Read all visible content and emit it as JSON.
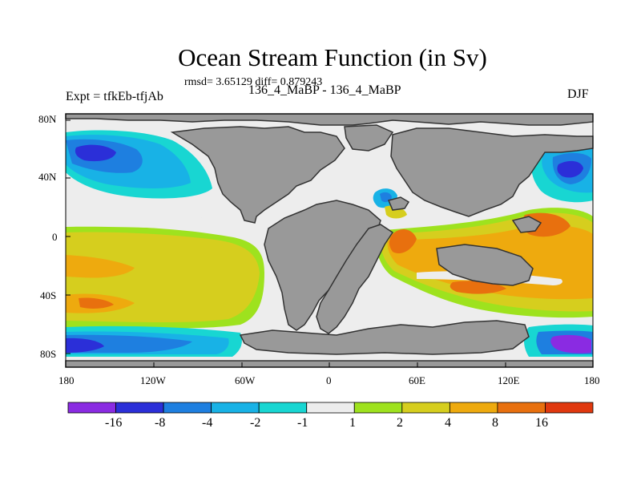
{
  "figure": {
    "title": "Ocean Stream Function (in Sv)",
    "stats": "rmsd= 3.65129 diff= 0.879243",
    "left_label": "Expt = tfkEb-tfjAb",
    "center_label": "136_4_MaBP - 136_4_MaBP",
    "right_label": "DJF"
  },
  "axes": {
    "y_ticks": [
      "80N",
      "40N",
      "0",
      "40S",
      "80S"
    ],
    "x_ticks": [
      "180",
      "120W",
      "60W",
      "0",
      "60E",
      "120E",
      "180"
    ]
  },
  "colorbar": {
    "labels": [
      "-16",
      "-8",
      "-4",
      "-2",
      "-1",
      "1",
      "2",
      "4",
      "8",
      "16"
    ],
    "colors": [
      "#8a2be2",
      "#2b2fd8",
      "#1e7fe0",
      "#18b2e6",
      "#18d6d2",
      "#ededed",
      "#9ee21e",
      "#d6ce1e",
      "#eeaa0e",
      "#e8700e",
      "#e0380e"
    ]
  },
  "map": {
    "land_color": "#999999",
    "ocean_neutral_color": "#ededed"
  }
}
